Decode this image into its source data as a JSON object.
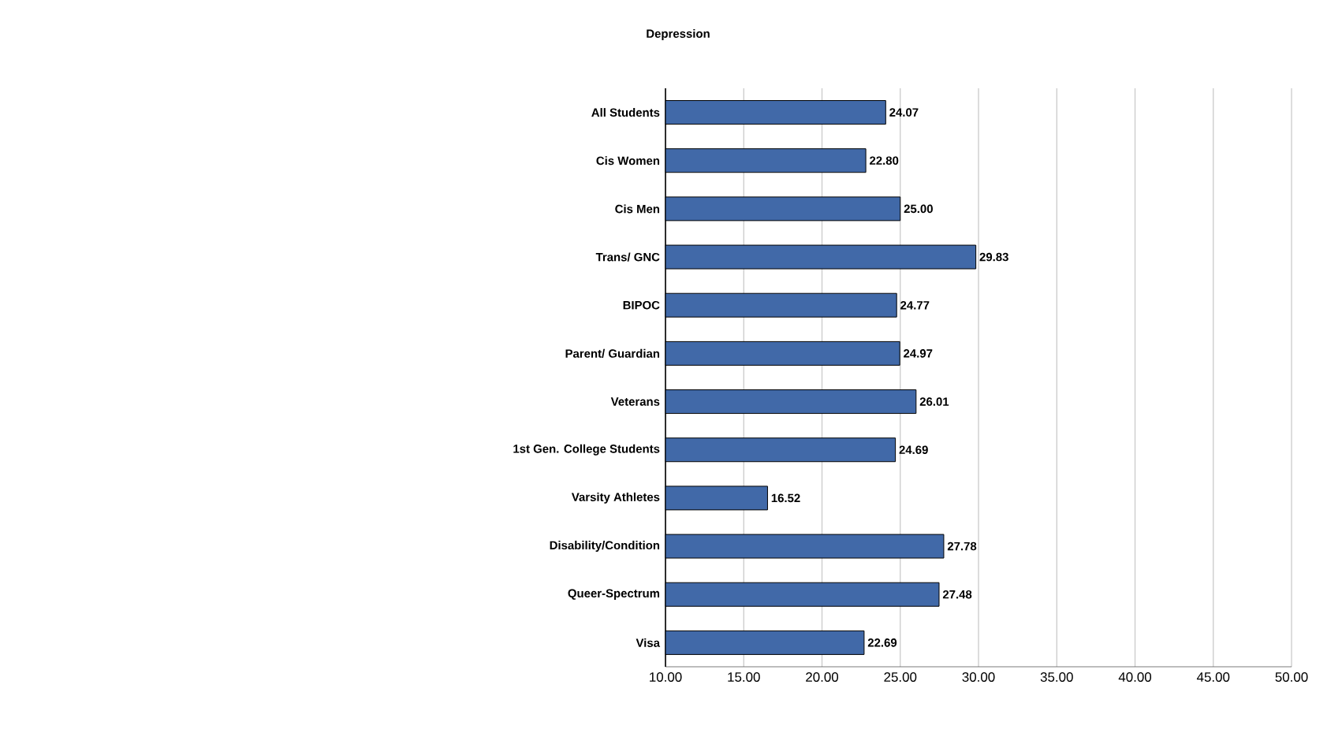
{
  "chart_data": {
    "type": "bar",
    "orientation": "horizontal",
    "title": "Depression",
    "categories": [
      "All Students",
      "Cis Women",
      "Cis Men",
      "Trans/ GNC",
      "BIPOC",
      "Parent/ Guardian",
      "Veterans",
      "1st Gen. College Students",
      "Varsity Athletes",
      "Disability/Condition",
      "Queer-Spectrum",
      "Visa"
    ],
    "values": [
      24.07,
      22.8,
      25.0,
      29.83,
      24.77,
      24.97,
      26.01,
      24.69,
      16.52,
      27.78,
      27.48,
      22.69
    ],
    "value_labels": [
      "24.07",
      "22.80",
      "25.00",
      "29.83",
      "24.77",
      "24.97",
      "26.01",
      "24.69",
      "16.52",
      "27.78",
      "27.48",
      "22.69"
    ],
    "color": "#4169a8",
    "xlim": [
      10,
      50
    ],
    "xticks": [
      {
        "value": 10,
        "label": "10.00"
      },
      {
        "value": 15,
        "label": "15.00"
      },
      {
        "value": 20,
        "label": "20.00"
      },
      {
        "value": 25,
        "label": "25.00"
      },
      {
        "value": 30,
        "label": "30.00"
      },
      {
        "value": 35,
        "label": "35.00"
      },
      {
        "value": 40,
        "label": "40.00"
      },
      {
        "value": 45,
        "label": "45.00"
      },
      {
        "value": 50,
        "label": "50.00"
      }
    ],
    "grid": "x"
  }
}
